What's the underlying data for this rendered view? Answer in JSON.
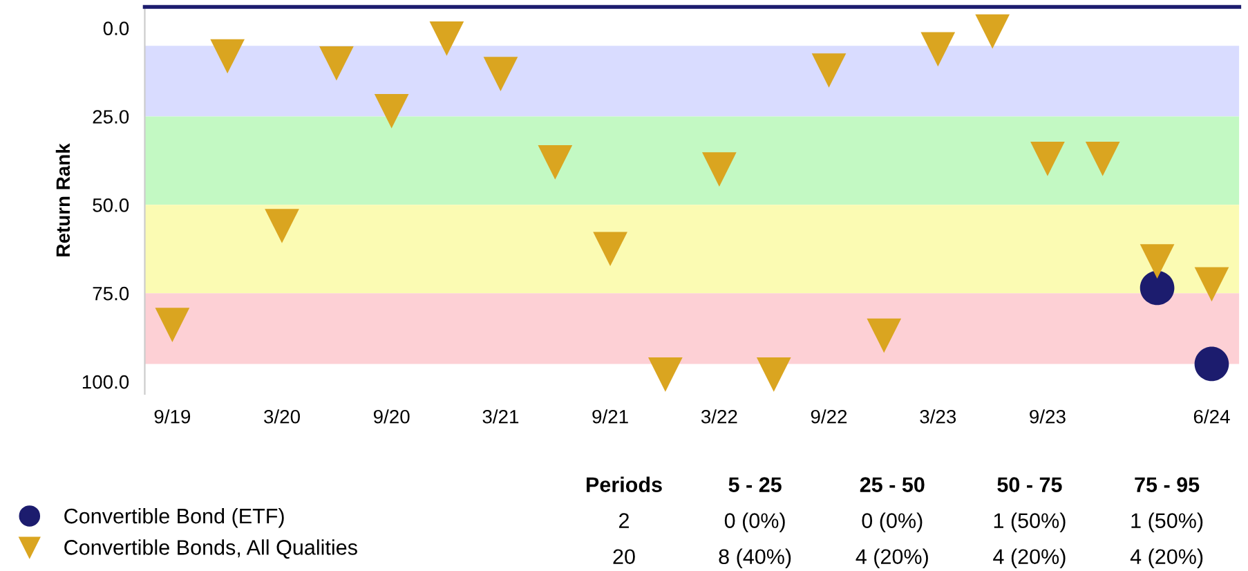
{
  "chart_data": {
    "type": "scatter",
    "ylabel": "Return Rank",
    "ylim": [
      103.5,
      -6
    ],
    "yticks": [
      {
        "value": 0,
        "label": "0.0"
      },
      {
        "value": 25,
        "label": "25.0"
      },
      {
        "value": 50,
        "label": "50.0"
      },
      {
        "value": 75,
        "label": "75.0"
      },
      {
        "value": 100,
        "label": "100.0"
      }
    ],
    "xlim": [
      "2019-08-15",
      "2024-08-15"
    ],
    "xticks": [
      {
        "value": "2019-09-30",
        "label": "9/19"
      },
      {
        "value": "2020-03-31",
        "label": "3/20"
      },
      {
        "value": "2020-09-30",
        "label": "9/20"
      },
      {
        "value": "2021-03-31",
        "label": "3/21"
      },
      {
        "value": "2021-09-30",
        "label": "9/21"
      },
      {
        "value": "2022-03-31",
        "label": "3/22"
      },
      {
        "value": "2022-09-30",
        "label": "9/22"
      },
      {
        "value": "2023-03-31",
        "label": "3/23"
      },
      {
        "value": "2023-09-30",
        "label": "9/23"
      },
      {
        "value": "2024-06-30",
        "label": "6/24"
      }
    ],
    "bands": [
      {
        "axis": "y",
        "from": 5,
        "to": 25,
        "color": "#d9dcff"
      },
      {
        "axis": "y",
        "from": 25,
        "to": 50,
        "color": "#c3f9c3"
      },
      {
        "axis": "y",
        "from": 50,
        "to": 75,
        "color": "#fbfbb3"
      },
      {
        "axis": "y",
        "from": 75,
        "to": 95,
        "color": "#fdd0d5"
      }
    ],
    "grid": false,
    "legend": "bottom",
    "series": [
      {
        "name": "Convertible Bond (ETF)",
        "color": "#1c1c6e",
        "marker": "circle",
        "x": [
          "2024-03-31",
          "2024-06-30"
        ],
        "values": [
          73.5,
          95
        ]
      },
      {
        "name": "Convertible Bonds, All Qualities",
        "color": "#daa520",
        "marker": "triangle",
        "x": [
          "2019-09-30",
          "2019-12-31",
          "2020-03-31",
          "2020-06-30",
          "2020-09-30",
          "2020-12-31",
          "2021-03-31",
          "2021-06-30",
          "2021-09-30",
          "2021-12-31",
          "2022-03-31",
          "2022-06-30",
          "2022-09-30",
          "2022-12-31",
          "2023-03-31",
          "2023-06-30",
          "2023-09-30",
          "2023-12-31",
          "2024-03-31",
          "2024-06-30"
        ],
        "values": [
          84,
          8,
          56,
          10,
          23.5,
          3,
          13,
          38,
          62.5,
          98,
          40,
          98,
          12,
          87,
          6,
          1,
          37,
          37,
          66,
          72.5
        ]
      }
    ],
    "annotations": [
      "Periods",
      "5 - 25",
      "25 - 50",
      "50 - 75",
      "75 - 95",
      "2",
      "0 (0%)",
      "0 (0%)",
      "1 (50%)",
      "1 (50%)",
      "20",
      "8 (40%)",
      "4 (20%)",
      "4 (20%)",
      "4 (20%)"
    ]
  }
}
